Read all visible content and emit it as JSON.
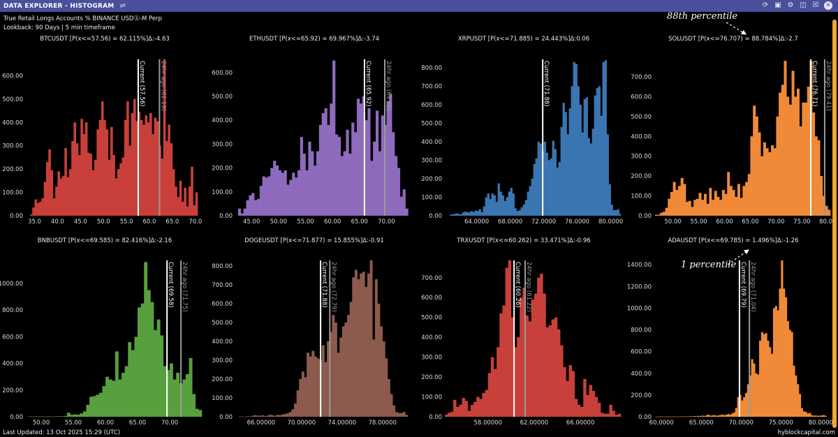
{
  "window": {
    "title": "DATA EXPLORER - HISTOGRAM",
    "icons": [
      "filter-sliders-icon",
      "refresh-icon",
      "camera-icon",
      "gear-icon",
      "save-icon",
      "export-icon",
      "close-icon"
    ]
  },
  "header": {
    "subtitle": "True Retail Longs Accounts % BINANCE USDⓈ-M Perp",
    "lookback": "Lookback: 90 Days | 5 min timeframe"
  },
  "annotations": {
    "top": "88th percentile",
    "bottom": "1 percentile"
  },
  "footer": {
    "last_updated": "Last Updated: 13 Oct 2025 15:29 (UTC)",
    "brand": "hyblockcapital.com"
  },
  "chart_data": [
    {
      "type": "bar",
      "title": "BTCUSDT [P(x<=57.56) = 62.115%]Δ:-4.63",
      "color": "#c9403a",
      "xlim": [
        33.1,
        71.4
      ],
      "ylim": [
        0,
        670
      ],
      "bin_start": 34.0,
      "bin_width": 0.5,
      "values": [
        5,
        35,
        70,
        55,
        60,
        75,
        145,
        230,
        285,
        195,
        75,
        125,
        190,
        160,
        170,
        290,
        165,
        200,
        320,
        400,
        310,
        260,
        415,
        350,
        400,
        270,
        265,
        195,
        240,
        370,
        410,
        490,
        410,
        370,
        240,
        380,
        260,
        160,
        200,
        225,
        250,
        410,
        490,
        300,
        440,
        500,
        405,
        445,
        410,
        390,
        430,
        400,
        440,
        350,
        420,
        405,
        300,
        245,
        670,
        320,
        390,
        310,
        200,
        125,
        80,
        150,
        60,
        120,
        40,
        125,
        210,
        45,
        100
      ],
      "current": {
        "label": "Current (57.56)",
        "value": 57.56
      },
      "ago": {
        "label": "24hr ago (62.19)",
        "value": 62.19
      },
      "x_ticks": [
        "35.0",
        "40.0",
        "45.0",
        "50.0",
        "55.0",
        "60.0",
        "65.0",
        "70.0"
      ],
      "y_ticks": [
        "0.00",
        "100.00",
        "200.00",
        "300.00",
        "400.00",
        "500.00",
        "600.00"
      ]
    },
    {
      "type": "bar",
      "title": "ETHUSDT [P(x<=65.92) = 69.967%]Δ:-3.74",
      "color": "#8e6bbd",
      "xlim": [
        42.0,
        74.6
      ],
      "ylim": [
        0,
        655
      ],
      "bin_start": 42.5,
      "bin_width": 0.5,
      "values": [
        30,
        10,
        30,
        65,
        85,
        95,
        65,
        70,
        125,
        165,
        160,
        165,
        200,
        230,
        210,
        190,
        180,
        190,
        130,
        150,
        180,
        160,
        190,
        330,
        260,
        190,
        310,
        270,
        210,
        270,
        380,
        430,
        450,
        380,
        470,
        650,
        340,
        330,
        250,
        270,
        360,
        260,
        390,
        350,
        490,
        470,
        500,
        400,
        450,
        230,
        310,
        440,
        270,
        420,
        380,
        480,
        510,
        350,
        250,
        200,
        80,
        110,
        30
      ],
      "current": {
        "label": "Current (65.92)",
        "value": 65.92
      },
      "ago": {
        "label": "24hr ago (69.68)",
        "value": 69.68
      },
      "x_ticks": [
        "45.00",
        "50.00",
        "55.00",
        "60.00",
        "65.00",
        "70.00"
      ],
      "y_ticks": [
        "0.00",
        "100.00",
        "200.00",
        "300.00",
        "400.00",
        "500.00",
        "600.00"
      ]
    },
    {
      "type": "bar",
      "title": "XRPUSDT [P(x<=71.885) = 24.443%]Δ:0.06",
      "color": "#3b76b3",
      "xlim": [
        60.2,
        81.2
      ],
      "ylim": [
        0,
        845
      ],
      "bin_start": 60.75,
      "bin_width": 0.25,
      "values": [
        5,
        8,
        10,
        12,
        10,
        8,
        18,
        22,
        20,
        18,
        25,
        20,
        28,
        25,
        35,
        20,
        50,
        100,
        120,
        90,
        120,
        110,
        75,
        175,
        130,
        110,
        80,
        100,
        130,
        150,
        120,
        40,
        25,
        30,
        45,
        60,
        85,
        130,
        160,
        200,
        280,
        310,
        400,
        390,
        350,
        400,
        340,
        300,
        310,
        405,
        360,
        260,
        290,
        480,
        610,
        560,
        440,
        580,
        700,
        830,
        820,
        700,
        600,
        450,
        630,
        640,
        420,
        390,
        470,
        650,
        690,
        700,
        540,
        830,
        840,
        440,
        170,
        60,
        30,
        30,
        35,
        10
      ],
      "current": {
        "label": "Current (71.88)",
        "value": 71.88
      },
      "x_ticks": [
        "64.0000",
        "68.0000",
        "72.0000",
        "76.0000",
        "80.0000"
      ],
      "y_ticks": [
        "0.00",
        "100.00",
        "200.00",
        "300.00",
        "400.00",
        "500.00",
        "600.00",
        "700.00",
        "800.00"
      ]
    },
    {
      "type": "bar",
      "title": "SOLUSDT [P(x<=76.707) = 88.784%]Δ:-2.7",
      "color": "#f08a38",
      "xlim": [
        46.4,
        80.5
      ],
      "ylim": [
        0,
        788
      ],
      "bin_start": 46.5,
      "bin_width": 0.5,
      "values": [
        5,
        5,
        15,
        20,
        40,
        85,
        120,
        170,
        130,
        150,
        190,
        160,
        70,
        75,
        45,
        80,
        85,
        115,
        80,
        110,
        60,
        140,
        80,
        125,
        95,
        80,
        130,
        110,
        220,
        150,
        130,
        95,
        160,
        90,
        150,
        170,
        210,
        400,
        555,
        500,
        420,
        300,
        370,
        340,
        320,
        355,
        340,
        500,
        620,
        660,
        780,
        600,
        560,
        730,
        600,
        640,
        450,
        570,
        570,
        650,
        780,
        520,
        400,
        380,
        200,
        100,
        50,
        30
      ],
      "current": {
        "label": "Current (76.71)",
        "value": 76.71
      },
      "ago": {
        "label": "24hr ago (79.41)",
        "value": 79.41
      },
      "x_ticks": [
        "50.00",
        "55.00",
        "60.00",
        "65.00",
        "70.00",
        "75.00",
        "80.00"
      ],
      "y_ticks": [
        "0.00",
        "100.00",
        "200.00",
        "300.00",
        "400.00",
        "500.00",
        "600.00",
        "700.00"
      ]
    },
    {
      "type": "bar",
      "title": "BNBUSDT [P(x<=69.585) = 82.416%]Δ:-2.16",
      "color": "#58a03d",
      "xlim": [
        47.6,
        75.0
      ],
      "ylim": [
        0,
        1173
      ],
      "bin_start": 48.0,
      "bin_width": 0.5,
      "values": [
        3,
        2,
        3,
        2,
        3,
        2,
        3,
        2,
        3,
        4,
        3,
        5,
        30,
        15,
        18,
        15,
        25,
        40,
        90,
        150,
        155,
        165,
        180,
        230,
        300,
        280,
        270,
        490,
        280,
        330,
        380,
        560,
        500,
        600,
        820,
        850,
        1160,
        950,
        860,
        650,
        730,
        610,
        380,
        350,
        400,
        280,
        330,
        250,
        280,
        320,
        440,
        170,
        60,
        50
      ],
      "current": {
        "label": "Current (69.58)",
        "value": 69.58
      },
      "ago": {
        "label": "24hr ago (71.75)",
        "value": 71.75
      },
      "x_ticks": [
        "50.00",
        "55.00",
        "60.00",
        "65.00",
        "70.00"
      ],
      "y_ticks": [
        "0.00",
        "200.00",
        "400.00",
        "600.00",
        "800.00",
        "1000.00"
      ]
    },
    {
      "type": "bar",
      "title": "DOGEUSDT [P(x<=71.877) = 15.855%]Δ:-0.91",
      "color": "#8c5b4d",
      "xlim": [
        63.45,
        80.85
      ],
      "ylim": [
        0,
        830
      ],
      "bin_start": 63.75,
      "bin_width": 0.25,
      "values": [
        0,
        2,
        0,
        3,
        2,
        5,
        8,
        6,
        5,
        8,
        4,
        6,
        10,
        8,
        5,
        10,
        8,
        12,
        15,
        18,
        25,
        40,
        70,
        140,
        200,
        240,
        210,
        340,
        320,
        350,
        320,
        310,
        300,
        380,
        290,
        400,
        450,
        540,
        500,
        340,
        420,
        480,
        500,
        540,
        610,
        740,
        780,
        730,
        760,
        770,
        690,
        760,
        830,
        410,
        730,
        600,
        480,
        400,
        310,
        200,
        120,
        60,
        25,
        20,
        20,
        25,
        10
      ],
      "current": {
        "label": "Current (71.88)",
        "value": 71.88
      },
      "ago": {
        "label": "24hr ago (72.79)",
        "value": 72.79
      },
      "x_ticks": [
        "66.00000",
        "70.00000",
        "74.00000",
        "78.00000"
      ],
      "y_ticks": [
        "0.00",
        "100.00",
        "200.00",
        "300.00",
        "400.00",
        "500.00",
        "600.00",
        "700.00",
        "800.00"
      ]
    },
    {
      "type": "bar",
      "title": "TRXUSDT [P(x<=60.262) = 33.471%]Δ:-0.96",
      "color": "#c9403a",
      "xlim": [
        54.27,
        69.5
      ],
      "ylim": [
        0,
        787
      ],
      "bin_start": 54.25,
      "bin_width": 0.25,
      "values": [
        10,
        20,
        25,
        85,
        50,
        60,
        95,
        80,
        30,
        60,
        75,
        100,
        90,
        120,
        135,
        220,
        300,
        240,
        350,
        520,
        560,
        750,
        790,
        500,
        350,
        400,
        600,
        650,
        510,
        480,
        590,
        620,
        700,
        720,
        620,
        450,
        460,
        490,
        500,
        440,
        360,
        250,
        180,
        260,
        230,
        90,
        60,
        50,
        190,
        110,
        160,
        130,
        100,
        70,
        20,
        15,
        15,
        60,
        30,
        10,
        15
      ],
      "current": {
        "label": "Current (60.26)",
        "value": 60.26
      },
      "ago": {
        "label": "24hr ago (61.22)",
        "value": 61.22
      },
      "x_ticks": [
        "58.00000",
        "62.00000",
        "66.00000"
      ],
      "y_ticks": [
        "0.00",
        "100.00",
        "200.00",
        "300.00",
        "400.00",
        "500.00",
        "600.00",
        "700.00"
      ]
    },
    {
      "type": "bar",
      "title": "ADAUSDT [P(x<=69.785) = 1.496%]Δ:-1.26",
      "color": "#f08a38",
      "xlim": [
        59.1,
        81.2
      ],
      "ylim": [
        0,
        1440
      ],
      "bin_start": 59.25,
      "bin_width": 0.25,
      "values": [
        2,
        1,
        2,
        2,
        1,
        2,
        3,
        1,
        2,
        3,
        2,
        2,
        3,
        4,
        3,
        2,
        4,
        5,
        4,
        6,
        5,
        8,
        6,
        10,
        8,
        12,
        20,
        10,
        12,
        15,
        10,
        12,
        15,
        20,
        15,
        18,
        25,
        20,
        30,
        40,
        80,
        180,
        200,
        150,
        180,
        220,
        300,
        380,
        530,
        490,
        400,
        390,
        700,
        780,
        760,
        770,
        700,
        640,
        580,
        1000,
        1020,
        980,
        1180,
        1440,
        1180,
        1100,
        880,
        800,
        780,
        470,
        380,
        300,
        210,
        80,
        50,
        45,
        30,
        35,
        15,
        10,
        12,
        8,
        10,
        12,
        15,
        8
      ],
      "current": {
        "label": "Current (69.79)",
        "value": 69.79
      },
      "ago": {
        "label": "24hr ago (71.04)",
        "value": 71.04
      },
      "x_ticks": [
        "60.0000",
        "65.0000",
        "70.0000",
        "75.0000",
        "80.0000"
      ],
      "y_ticks": [
        "0.00",
        "200.00",
        "400.00",
        "600.00",
        "800.00",
        "1000.00",
        "1200.00",
        "1400.00"
      ]
    }
  ]
}
